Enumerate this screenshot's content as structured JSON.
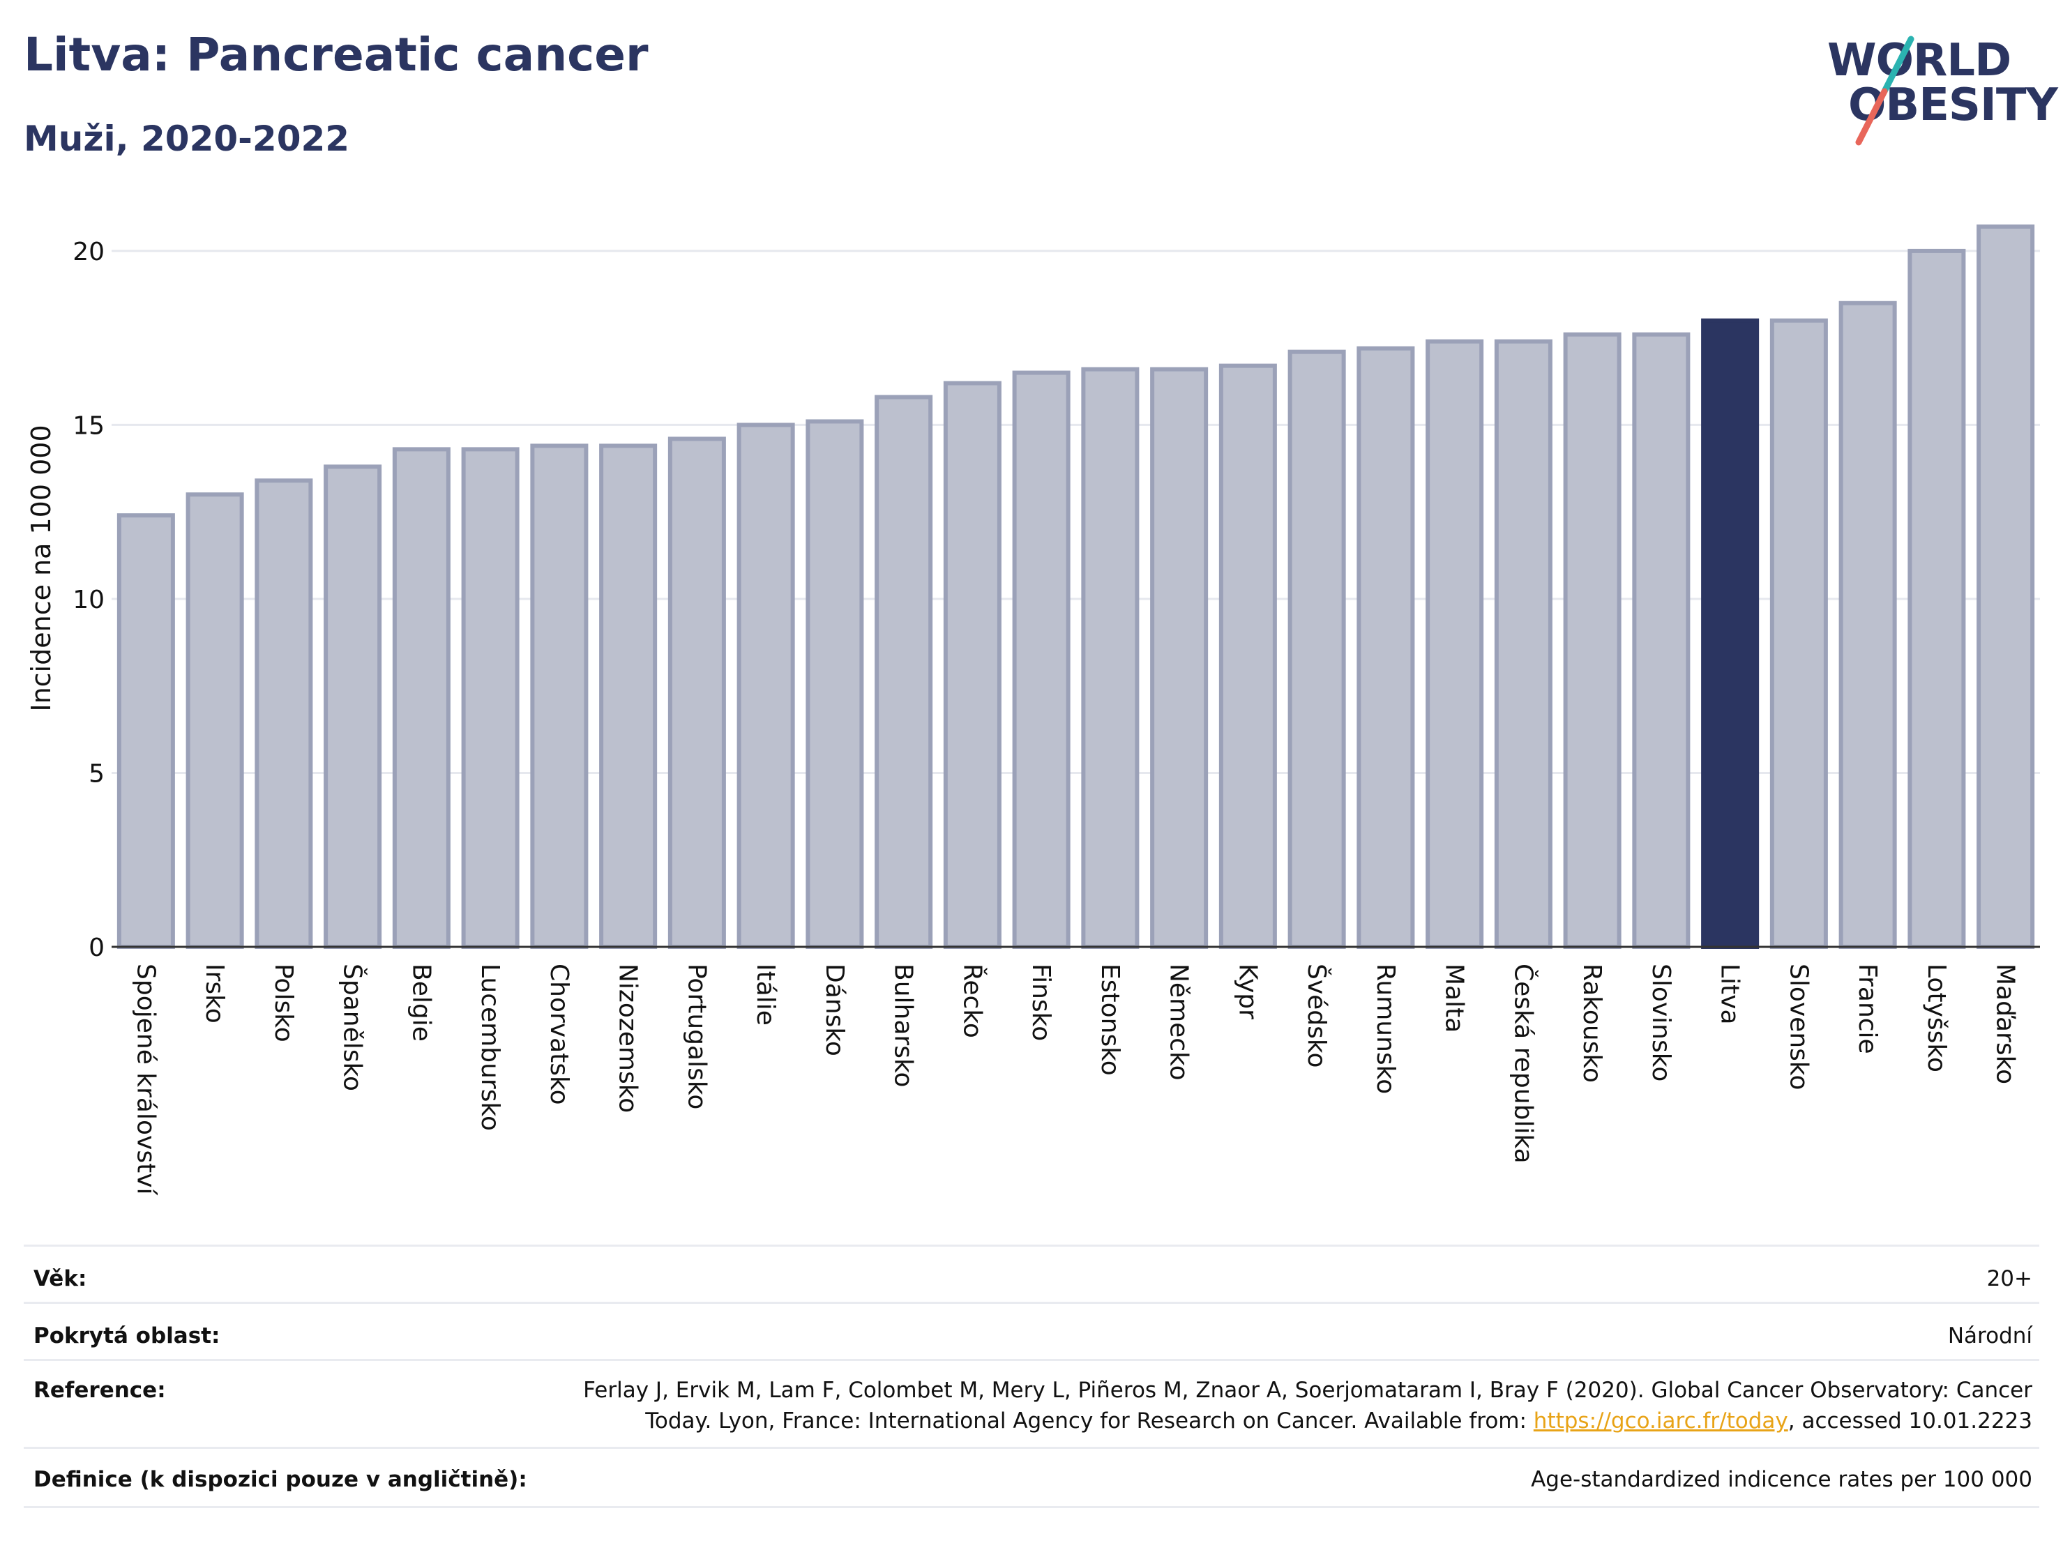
{
  "header": {
    "title": "Litva: Pancreatic cancer",
    "subtitle": "Muži, 2020-2022"
  },
  "logo": {
    "line1": "WORLD",
    "line2": "OBESITY",
    "colors": {
      "text": "#2b3561",
      "slash_top": "#2bb3b1",
      "slash_bottom": "#e8665a"
    }
  },
  "colors": {
    "bar_default_fill": "#bcc0ce",
    "bar_default_stroke": "#9ba1b8",
    "bar_highlight": "#2b3561",
    "grid": "#e6e8ee",
    "axis": "#333333"
  },
  "chart_data": {
    "type": "bar",
    "title": "Litva: Pancreatic cancer",
    "subtitle": "Muži, 2020-2022",
    "xlabel": "",
    "ylabel": "Incidence na 100 000",
    "ylim": [
      0,
      21
    ],
    "yticks": [
      0,
      5,
      10,
      15,
      20
    ],
    "grid": true,
    "highlight": "Litva",
    "categories": [
      "Spojené království",
      "Irsko",
      "Polsko",
      "Španělsko",
      "Belgie",
      "Lucembursko",
      "Chorvatsko",
      "Nizozemsko",
      "Portugalsko",
      "Itálie",
      "Dánsko",
      "Bulharsko",
      "Řecko",
      "Finsko",
      "Estonsko",
      "Německo",
      "Kypr",
      "Švédsko",
      "Rumunsko",
      "Malta",
      "Česká republika",
      "Rakousko",
      "Slovinsko",
      "Litva",
      "Slovensko",
      "Francie",
      "Lotyšsko",
      "Maďarsko"
    ],
    "values": [
      12.4,
      13.0,
      13.4,
      13.8,
      14.3,
      14.3,
      14.4,
      14.4,
      14.6,
      15.0,
      15.1,
      15.8,
      16.2,
      16.5,
      16.6,
      16.6,
      16.7,
      17.1,
      17.2,
      17.4,
      17.4,
      17.6,
      17.6,
      18.0,
      18.0,
      18.5,
      20.0,
      20.7
    ]
  },
  "meta": {
    "age_label": "Věk:",
    "age_value": "20+",
    "area_label": "Pokrytá oblast:",
    "area_value": "Národní",
    "reference_label": "Reference:",
    "reference_text_1": "Ferlay J, Ervik M, Lam F, Colombet M, Mery L, Piñeros M, Znaor A, Soerjomataram I, Bray F (2020). Global Cancer Observatory: Cancer Today. Lyon, France: International Agency for Research on Cancer. Available from: ",
    "reference_link": "https://gco.iarc.fr/today",
    "reference_text_2": ", accessed 10.01.2223",
    "definition_label": "Definice (k dispozici pouze v angličtině):",
    "definition_value": "Age-standardized indicence rates per 100 000"
  }
}
